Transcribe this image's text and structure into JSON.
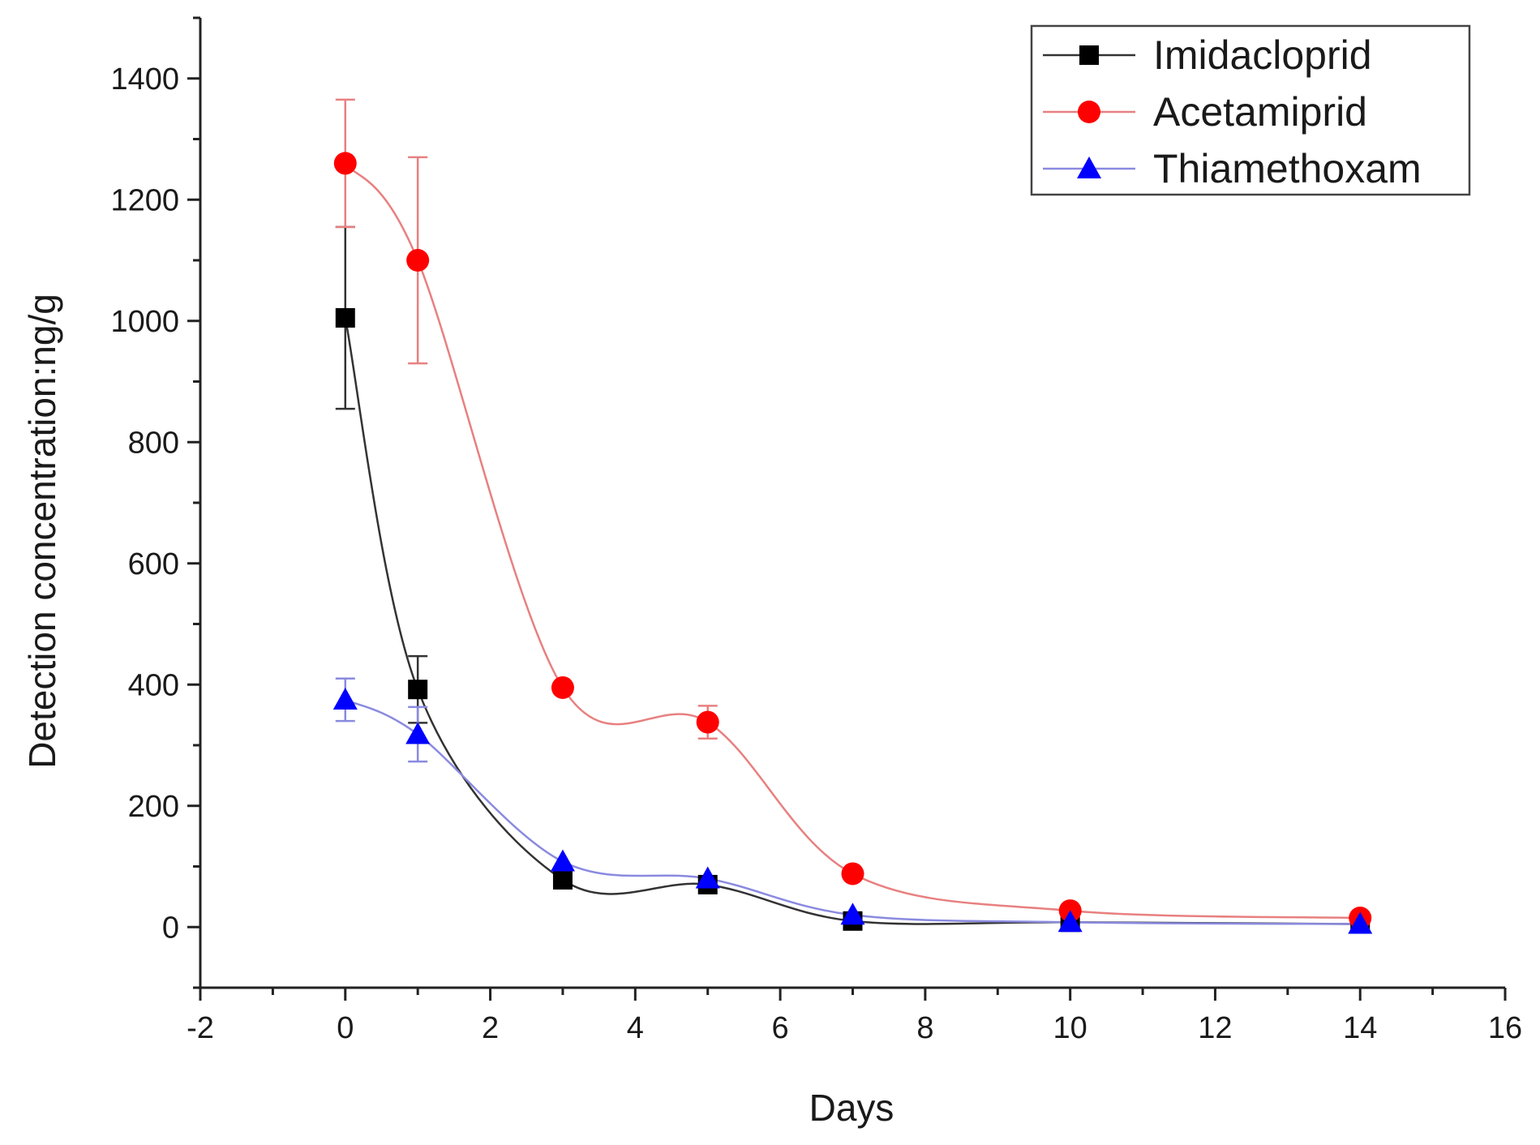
{
  "chart_data": {
    "type": "line",
    "title": "",
    "xlabel": "Days",
    "ylabel": "Detection concentration:ng/g",
    "xlim": [
      -2,
      16
    ],
    "ylim": [
      -100,
      1500
    ],
    "x_ticks": [
      "-2",
      "0",
      "2",
      "4",
      "6",
      "8",
      "10",
      "12",
      "14",
      "16"
    ],
    "y_ticks": [
      "0",
      "200",
      "400",
      "600",
      "800",
      "1000",
      "1200",
      "1400"
    ],
    "x_tick_values": [
      -2,
      0,
      2,
      4,
      6,
      8,
      10,
      12,
      14,
      16
    ],
    "y_tick_values": [
      0,
      200,
      400,
      600,
      800,
      1000,
      1200,
      1400
    ],
    "x_minor_step": 1,
    "y_minor_step": 100,
    "grid": false,
    "legend_position": "top-right",
    "x": [
      0,
      1,
      3,
      5,
      7,
      10,
      14
    ],
    "series": [
      {
        "name": "Imidacloprid",
        "marker": "square",
        "color": "#000000",
        "line_color": "#333333",
        "values": [
          1005,
          392,
          78,
          70,
          10,
          8,
          5
        ],
        "errors": [
          150,
          55,
          0,
          0,
          0,
          0,
          0
        ]
      },
      {
        "name": "Acetamiprid",
        "marker": "circle",
        "color": "#ff0000",
        "line_color": "#e88080",
        "values": [
          1260,
          1100,
          395,
          338,
          88,
          27,
          15
        ],
        "errors": [
          105,
          170,
          0,
          27,
          0,
          0,
          0
        ]
      },
      {
        "name": "Thiamethoxam",
        "marker": "triangle",
        "color": "#0000ff",
        "line_color": "#8a8ae0",
        "values": [
          375,
          318,
          108,
          80,
          20,
          8,
          5
        ],
        "errors": [
          35,
          45,
          0,
          0,
          0,
          0,
          0
        ]
      }
    ]
  }
}
